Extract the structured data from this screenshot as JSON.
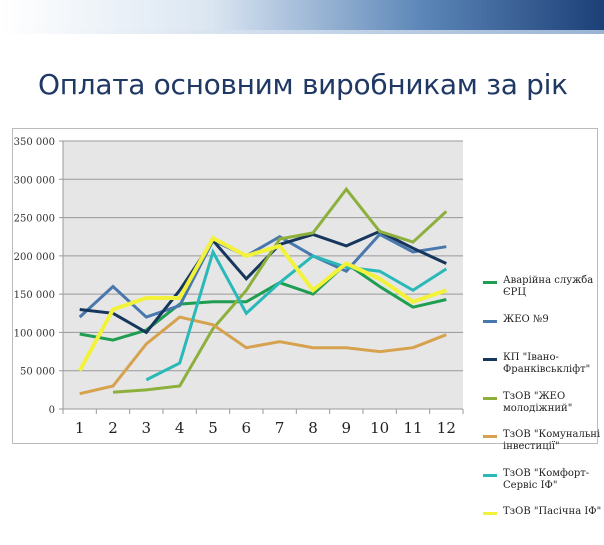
{
  "slide": {
    "title": "Оплата основним виробникам за рік"
  },
  "chart_data": {
    "type": "line",
    "title": "",
    "xlabel": "",
    "ylabel": "",
    "x": [
      1,
      2,
      3,
      4,
      5,
      6,
      7,
      8,
      9,
      10,
      11,
      12
    ],
    "ylim": [
      0,
      350000
    ],
    "yticks": [
      0,
      50000,
      100000,
      150000,
      200000,
      250000,
      300000,
      350000
    ],
    "ytick_labels": [
      "0",
      "50 000",
      "100 000",
      "150 000",
      "200 000",
      "250 000",
      "300 000",
      "350 000"
    ],
    "xtick_labels": [
      "1",
      "2",
      "3",
      "4",
      "5",
      "6",
      "7",
      "8",
      "9",
      "10",
      "11",
      "12"
    ],
    "grid": true,
    "legend_position": "right",
    "series": [
      {
        "name": "Аварійна служба ЄРЦ",
        "color": "#1f9e52",
        "values": [
          98000,
          90000,
          103000,
          137000,
          140000,
          140000,
          165000,
          150000,
          190000,
          160000,
          133000,
          143000
        ]
      },
      {
        "name": "ЖЕО №9",
        "color": "#4a78ad",
        "values": [
          120000,
          160000,
          120000,
          135000,
          220000,
          200000,
          225000,
          200000,
          180000,
          228000,
          205000,
          212000
        ]
      },
      {
        "name": "КП \"Івано-Франківськліфт\"",
        "color": "#17365d",
        "values": [
          130000,
          125000,
          100000,
          155000,
          220000,
          170000,
          215000,
          228000,
          213000,
          232000,
          210000,
          190000
        ]
      },
      {
        "name": "ТзОВ \"ЖЕО молодіжний\"",
        "color": "#8db03c",
        "values": [
          null,
          22000,
          25000,
          30000,
          105000,
          155000,
          222000,
          230000,
          287000,
          232000,
          218000,
          258000
        ]
      },
      {
        "name": "ТзОВ \"Комунальні інвестиції\"",
        "color": "#d6a24e",
        "values": [
          20000,
          30000,
          85000,
          120000,
          110000,
          80000,
          88000,
          80000,
          80000,
          75000,
          80000,
          97000
        ]
      },
      {
        "name": "ТзОВ \"Комфорт-Сервіс ІФ\"",
        "color": "#2bb8b8",
        "values": [
          null,
          null,
          38000,
          60000,
          205000,
          125000,
          165000,
          200000,
          185000,
          180000,
          155000,
          183000
        ]
      },
      {
        "name": "ТзОВ \"Пасічна ІФ\"",
        "color": "#f2f23a",
        "values": [
          50000,
          130000,
          145000,
          145000,
          223000,
          200000,
          213000,
          155000,
          190000,
          170000,
          140000,
          155000
        ]
      }
    ]
  }
}
